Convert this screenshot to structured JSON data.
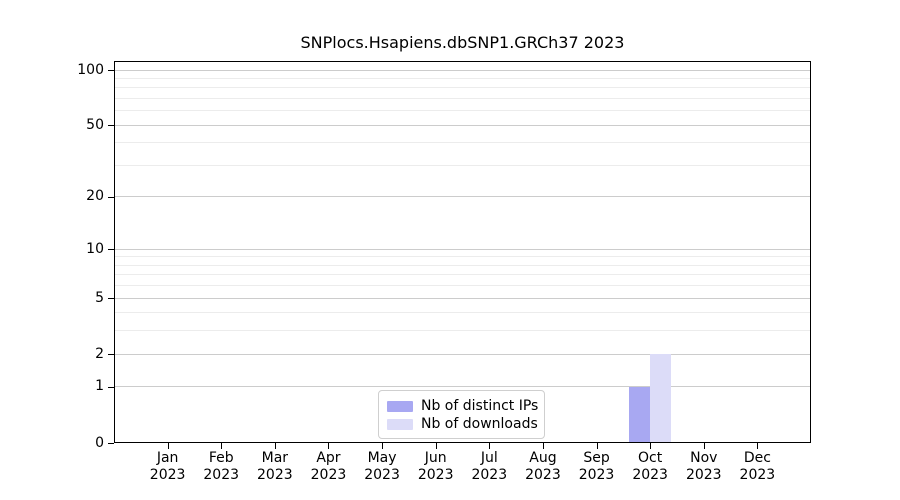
{
  "title": "SNPlocs.Hsapiens.dbSNP1.GRCh37 2023",
  "colors": {
    "background": "#ffffff",
    "axis": "#000000",
    "text": "#000000",
    "grid_major": "#cccccc",
    "grid_minor": "#ececec",
    "legend_border": "#cfcfcf",
    "bar_distinct_ips": "#a8a8f2",
    "bar_downloads": "#dcdcf8"
  },
  "legend": {
    "items": [
      {
        "label": "Nb of distinct IPs",
        "color": "#a8a8f2"
      },
      {
        "label": "Nb of downloads",
        "color": "#dcdcf8"
      }
    ]
  },
  "x_axis": {
    "months": [
      "Jan",
      "Feb",
      "Mar",
      "Apr",
      "May",
      "Jun",
      "Jul",
      "Aug",
      "Sep",
      "Oct",
      "Nov",
      "Dec"
    ],
    "year": "2023"
  },
  "chart_data": {
    "type": "bar",
    "title": "SNPlocs.Hsapiens.dbSNP1.GRCh37 2023",
    "categories": [
      "Jan 2023",
      "Feb 2023",
      "Mar 2023",
      "Apr 2023",
      "May 2023",
      "Jun 2023",
      "Jul 2023",
      "Aug 2023",
      "Sep 2023",
      "Oct 2023",
      "Nov 2023",
      "Dec 2023"
    ],
    "series": [
      {
        "name": "Nb of distinct IPs",
        "color": "#a8a8f2",
        "values": [
          0,
          0,
          0,
          0,
          0,
          0,
          0,
          0,
          0,
          1,
          0,
          0
        ]
      },
      {
        "name": "Nb of downloads",
        "color": "#dcdcf8",
        "values": [
          0,
          0,
          0,
          0,
          0,
          0,
          0,
          0,
          0,
          2,
          0,
          0
        ]
      }
    ],
    "xlabel": "",
    "ylabel": "",
    "yscale": "log1p",
    "yticks": [
      0,
      1,
      2,
      5,
      10,
      20,
      50,
      100
    ],
    "yticks_minor": [
      3,
      4,
      6,
      7,
      8,
      9,
      30,
      40,
      60,
      70,
      80,
      90
    ],
    "ylim": [
      0,
      112
    ],
    "grid": "horizontal",
    "legend_position": "lower center"
  }
}
